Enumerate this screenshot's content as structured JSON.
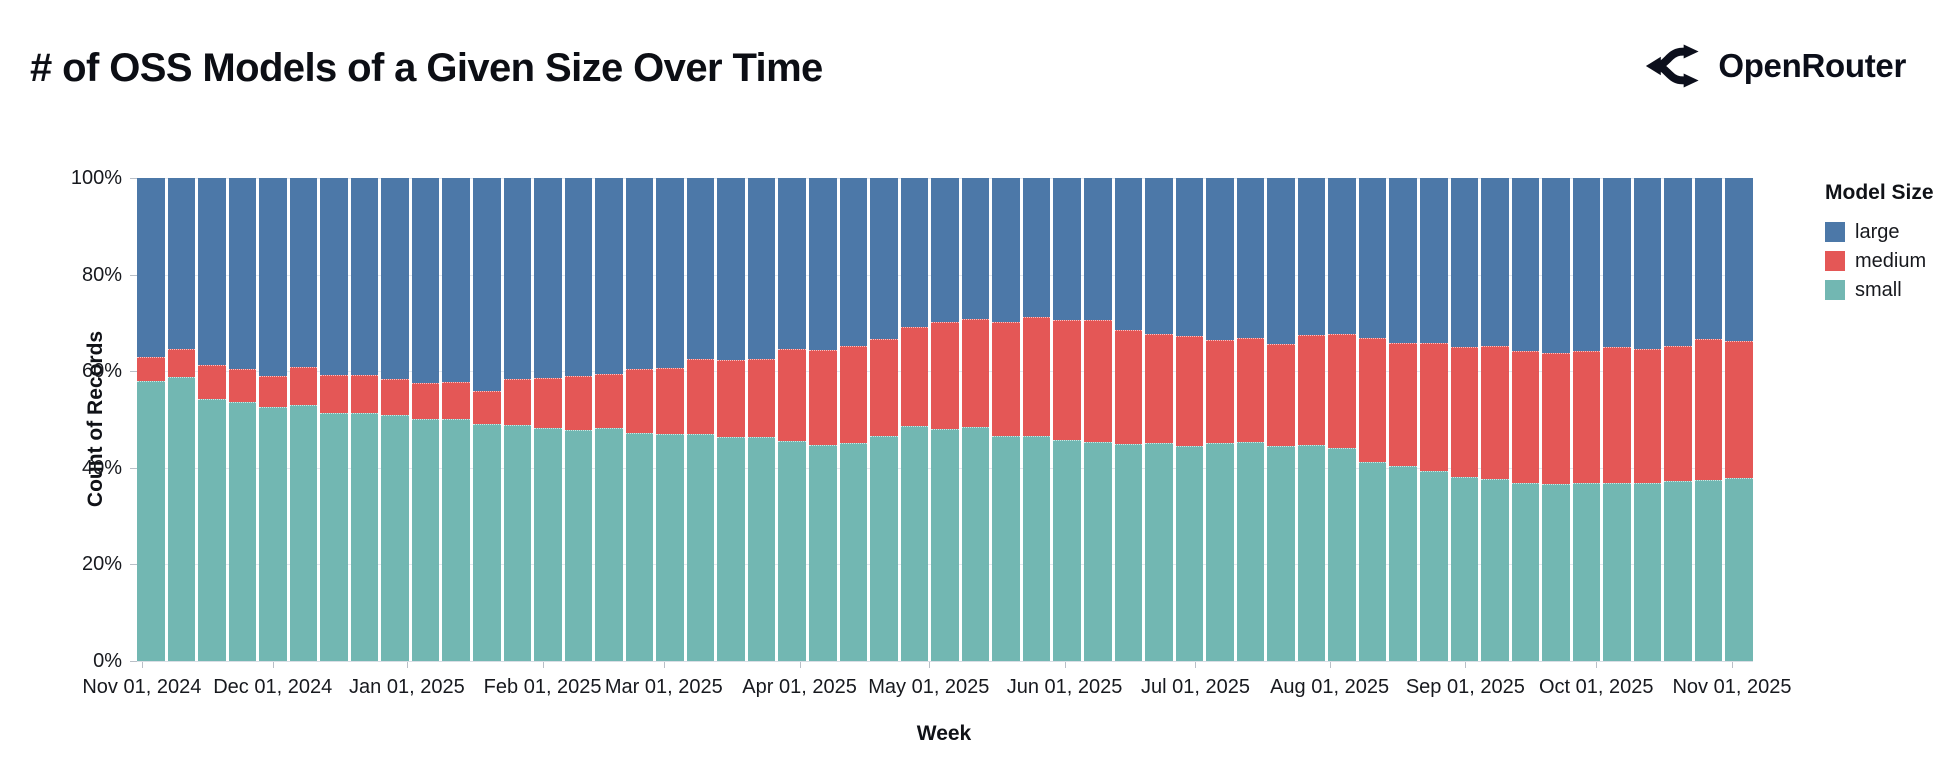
{
  "header": {
    "title": "# of OSS Models of a Given Size Over Time",
    "brand": "OpenRouter"
  },
  "chart_data": {
    "type": "bar",
    "stacked": true,
    "normalized": true,
    "title": "# of OSS Models of a Given Size Over Time",
    "xlabel": "Week",
    "ylabel": "Count of Records",
    "ylim": [
      0,
      100
    ],
    "grid": true,
    "weeks": 53,
    "x_range_note": "weekly bars from week of Nov 01, 2024 through week of Nov 01, 2025",
    "y_ticks": [
      {
        "label": "0%",
        "value": 0
      },
      {
        "label": "20%",
        "value": 20
      },
      {
        "label": "40%",
        "value": 40
      },
      {
        "label": "60%",
        "value": 60
      },
      {
        "label": "80%",
        "value": 80
      },
      {
        "label": "100%",
        "value": 100
      }
    ],
    "x_ticks": [
      {
        "label": "Nov 01, 2024",
        "pos": 0.003
      },
      {
        "label": "Dec 01, 2024",
        "pos": 0.084
      },
      {
        "label": "Jan 01, 2025",
        "pos": 0.167
      },
      {
        "label": "Feb 01, 2025",
        "pos": 0.251
      },
      {
        "label": "Mar 01, 2025",
        "pos": 0.326
      },
      {
        "label": "Apr 01, 2025",
        "pos": 0.41
      },
      {
        "label": "May 01, 2025",
        "pos": 0.49
      },
      {
        "label": "Jun 01, 2025",
        "pos": 0.574
      },
      {
        "label": "Jul 01, 2025",
        "pos": 0.655
      },
      {
        "label": "Aug 01, 2025",
        "pos": 0.738
      },
      {
        "label": "Sep 01, 2025",
        "pos": 0.822
      },
      {
        "label": "Oct 01, 2025",
        "pos": 0.903
      },
      {
        "label": "Nov 01, 2025",
        "pos": 0.987
      }
    ],
    "legend": {
      "title": "Model Size",
      "position": "right",
      "entries": [
        {
          "label": "large",
          "color": "#4c78a8"
        },
        {
          "label": "medium",
          "color": "#e45756"
        },
        {
          "label": "small",
          "color": "#72b7b2"
        }
      ]
    },
    "series": [
      {
        "name": "small",
        "color": "#72b7b2",
        "values": [
          58.0,
          58.7,
          54.2,
          53.6,
          52.5,
          53.1,
          51.3,
          51.3,
          50.9,
          50.0,
          50.0,
          49.1,
          48.9,
          48.3,
          47.8,
          48.2,
          47.3,
          46.9,
          47.0,
          46.3,
          46.4,
          45.6,
          44.7,
          45.2,
          46.6,
          48.7,
          48.0,
          48.4,
          46.6,
          46.6,
          45.8,
          45.4,
          44.9,
          45.2,
          44.6,
          45.2,
          45.4,
          44.6,
          44.7,
          44.2,
          41.3,
          40.4,
          39.3,
          38.0,
          37.7,
          36.8,
          36.6,
          36.8,
          36.8,
          36.9,
          37.3,
          37.5,
          37.8
        ]
      },
      {
        "name": "medium",
        "color": "#e45756",
        "values": [
          5.0,
          5.9,
          7.0,
          6.8,
          6.5,
          7.8,
          7.9,
          7.9,
          7.5,
          7.5,
          7.7,
          6.9,
          9.5,
          10.3,
          11.2,
          11.3,
          13.2,
          13.7,
          15.5,
          16.0,
          16.1,
          18.9,
          19.7,
          20.0,
          20.0,
          20.5,
          22.2,
          22.5,
          23.6,
          24.7,
          24.9,
          25.2,
          23.6,
          22.5,
          22.7,
          21.3,
          21.4,
          21.0,
          22.8,
          23.6,
          25.5,
          25.5,
          26.6,
          27.1,
          27.5,
          27.4,
          27.1,
          27.4,
          28.3,
          27.6,
          27.9,
          29.1,
          28.5
        ]
      },
      {
        "name": "large",
        "color": "#4c78a8",
        "values": [
          37.0,
          35.4,
          38.8,
          39.6,
          41.0,
          39.1,
          40.8,
          40.8,
          41.6,
          42.5,
          42.3,
          44.0,
          41.6,
          41.4,
          41.0,
          40.5,
          39.5,
          39.4,
          37.5,
          37.7,
          37.5,
          35.5,
          35.6,
          34.8,
          33.4,
          30.8,
          29.8,
          29.1,
          29.8,
          28.7,
          29.3,
          29.4,
          31.5,
          32.3,
          32.7,
          33.5,
          33.2,
          34.4,
          32.5,
          32.2,
          33.2,
          34.1,
          34.1,
          34.9,
          34.8,
          35.8,
          36.3,
          35.8,
          34.9,
          35.5,
          34.8,
          33.4,
          33.7
        ]
      }
    ]
  }
}
